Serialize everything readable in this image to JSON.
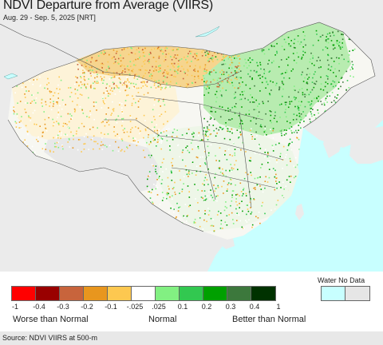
{
  "header": {
    "title": "NDVI Departure from Average (VIIRS)",
    "subtitle": "Aug. 29 - Sep. 5, 2025 [NRT]"
  },
  "legend": {
    "water_nodata_label": "Water No Data",
    "swatches": [
      {
        "color": "#ff0000"
      },
      {
        "color": "#990000"
      },
      {
        "color": "#c8643c"
      },
      {
        "color": "#e8961e"
      },
      {
        "color": "#fdc850"
      },
      {
        "color": "#ffffff"
      },
      {
        "color": "#82f082"
      },
      {
        "color": "#32c850"
      },
      {
        "color": "#00a000"
      },
      {
        "color": "#3c783c"
      },
      {
        "color": "#003200"
      }
    ],
    "special_swatches": [
      {
        "color": "#c8ffff"
      },
      {
        "color": "#e6e6e6"
      }
    ],
    "ticks": [
      "-1",
      "-0.4",
      "-0.3",
      "-0.2",
      "-0.1",
      "-.025",
      ".025",
      "0.1",
      "0.2",
      "0.3",
      "0.4",
      "1"
    ],
    "categories": {
      "worse": "Worse than Normal",
      "normal": "Normal",
      "better": "Better than Normal"
    }
  },
  "source": "Source: NDVI VIIRS at 500-m",
  "colors": {
    "ocean": "#c8ffff",
    "neighbor_land": "#ebebeb",
    "borders": "#555555"
  }
}
